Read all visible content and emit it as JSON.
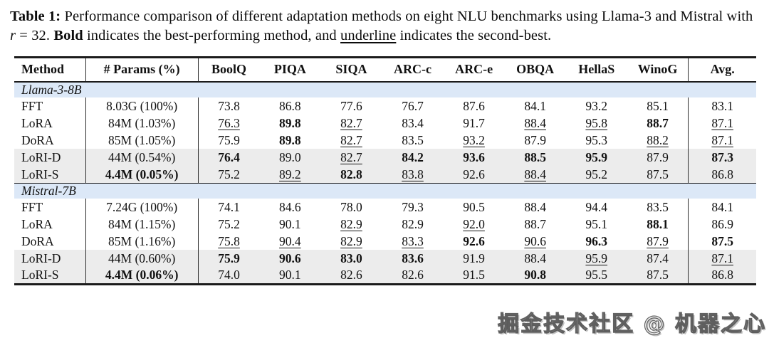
{
  "caption": {
    "label": "Table 1:",
    "part1": " Performance comparison of different adaptation methods on eight NLU benchmarks using Llama-3 and Mistral with ",
    "math_r": "r",
    "part2": " = 32. ",
    "bold_word": "Bold",
    "part3": " indicates the best-performing method, and ",
    "underline_word": "underline",
    "part4": " indicates the second-best."
  },
  "table": {
    "columns": [
      "Method",
      "# Params (%)",
      "BoolQ",
      "PIQA",
      "SIQA",
      "ARC-c",
      "ARC-e",
      "OBQA",
      "HellaS",
      "WinoG",
      "Avg."
    ],
    "sections": [
      {
        "name": "Llama-3-8B",
        "rows": [
          {
            "method": "FFT",
            "params": "8.03G (100%)",
            "params_bold": false,
            "highlight": false,
            "values": [
              [
                "73.8",
                "p"
              ],
              [
                "86.8",
                "p"
              ],
              [
                "77.6",
                "p"
              ],
              [
                "76.7",
                "p"
              ],
              [
                "87.6",
                "p"
              ],
              [
                "84.1",
                "p"
              ],
              [
                "93.2",
                "p"
              ],
              [
                "85.1",
                "p"
              ],
              [
                "83.1",
                "p"
              ]
            ]
          },
          {
            "method": "LoRA",
            "params": "84M (1.03%)",
            "params_bold": false,
            "highlight": false,
            "values": [
              [
                "76.3",
                "u"
              ],
              [
                "89.8",
                "b"
              ],
              [
                "82.7",
                "u"
              ],
              [
                "83.4",
                "p"
              ],
              [
                "91.7",
                "p"
              ],
              [
                "88.4",
                "u"
              ],
              [
                "95.8",
                "u"
              ],
              [
                "88.7",
                "b"
              ],
              [
                "87.1",
                "u"
              ]
            ]
          },
          {
            "method": "DoRA",
            "params": "85M (1.05%)",
            "params_bold": false,
            "highlight": false,
            "values": [
              [
                "75.9",
                "p"
              ],
              [
                "89.8",
                "b"
              ],
              [
                "82.7",
                "u"
              ],
              [
                "83.5",
                "p"
              ],
              [
                "93.2",
                "u"
              ],
              [
                "87.9",
                "p"
              ],
              [
                "95.3",
                "p"
              ],
              [
                "88.2",
                "u"
              ],
              [
                "87.1",
                "u"
              ]
            ]
          },
          {
            "method": "LoRI-D",
            "params": "44M (0.54%)",
            "params_bold": false,
            "highlight": true,
            "values": [
              [
                "76.4",
                "b"
              ],
              [
                "89.0",
                "p"
              ],
              [
                "82.7",
                "u"
              ],
              [
                "84.2",
                "b"
              ],
              [
                "93.6",
                "b"
              ],
              [
                "88.5",
                "b"
              ],
              [
                "95.9",
                "b"
              ],
              [
                "87.9",
                "p"
              ],
              [
                "87.3",
                "b"
              ]
            ]
          },
          {
            "method": "LoRI-S",
            "params": "4.4M (0.05%)",
            "params_bold": true,
            "highlight": true,
            "values": [
              [
                "75.2",
                "p"
              ],
              [
                "89.2",
                "u"
              ],
              [
                "82.8",
                "b"
              ],
              [
                "83.8",
                "u"
              ],
              [
                "92.6",
                "p"
              ],
              [
                "88.4",
                "u"
              ],
              [
                "95.2",
                "p"
              ],
              [
                "87.5",
                "p"
              ],
              [
                "86.8",
                "p"
              ]
            ]
          }
        ]
      },
      {
        "name": "Mistral-7B",
        "rows": [
          {
            "method": "FFT",
            "params": "7.24G (100%)",
            "params_bold": false,
            "highlight": false,
            "values": [
              [
                "74.1",
                "p"
              ],
              [
                "84.6",
                "p"
              ],
              [
                "78.0",
                "p"
              ],
              [
                "79.3",
                "p"
              ],
              [
                "90.5",
                "p"
              ],
              [
                "88.4",
                "p"
              ],
              [
                "94.4",
                "p"
              ],
              [
                "83.5",
                "p"
              ],
              [
                "84.1",
                "p"
              ]
            ]
          },
          {
            "method": "LoRA",
            "params": "84M (1.15%)",
            "params_bold": false,
            "highlight": false,
            "values": [
              [
                "75.2",
                "p"
              ],
              [
                "90.1",
                "p"
              ],
              [
                "82.9",
                "u"
              ],
              [
                "82.9",
                "p"
              ],
              [
                "92.0",
                "u"
              ],
              [
                "88.7",
                "p"
              ],
              [
                "95.1",
                "p"
              ],
              [
                "88.1",
                "b"
              ],
              [
                "86.9",
                "p"
              ]
            ]
          },
          {
            "method": "DoRA",
            "params": "85M (1.16%)",
            "params_bold": false,
            "highlight": false,
            "values": [
              [
                "75.8",
                "u"
              ],
              [
                "90.4",
                "u"
              ],
              [
                "82.9",
                "u"
              ],
              [
                "83.3",
                "u"
              ],
              [
                "92.6",
                "b"
              ],
              [
                "90.6",
                "u"
              ],
              [
                "96.3",
                "b"
              ],
              [
                "87.9",
                "u"
              ],
              [
                "87.5",
                "b"
              ]
            ]
          },
          {
            "method": "LoRI-D",
            "params": "44M (0.60%)",
            "params_bold": false,
            "highlight": true,
            "values": [
              [
                "75.9",
                "b"
              ],
              [
                "90.6",
                "b"
              ],
              [
                "83.0",
                "b"
              ],
              [
                "83.6",
                "b"
              ],
              [
                "91.9",
                "p"
              ],
              [
                "88.4",
                "p"
              ],
              [
                "95.9",
                "u"
              ],
              [
                "87.4",
                "p"
              ],
              [
                "87.1",
                "u"
              ]
            ]
          },
          {
            "method": "LoRI-S",
            "params": "4.4M (0.06%)",
            "params_bold": true,
            "highlight": true,
            "values": [
              [
                "74.0",
                "p"
              ],
              [
                "90.1",
                "p"
              ],
              [
                "82.6",
                "p"
              ],
              [
                "82.6",
                "p"
              ],
              [
                "91.5",
                "p"
              ],
              [
                "90.8",
                "b"
              ],
              [
                "95.5",
                "p"
              ],
              [
                "87.5",
                "p"
              ],
              [
                "86.8",
                "p"
              ]
            ]
          }
        ]
      }
    ]
  },
  "watermark": "掘金技术社区 @ 机器之心",
  "colors": {
    "section_band": "#dce8f7",
    "row_highlight": "#ececec",
    "rule": "#1b1b1b"
  }
}
